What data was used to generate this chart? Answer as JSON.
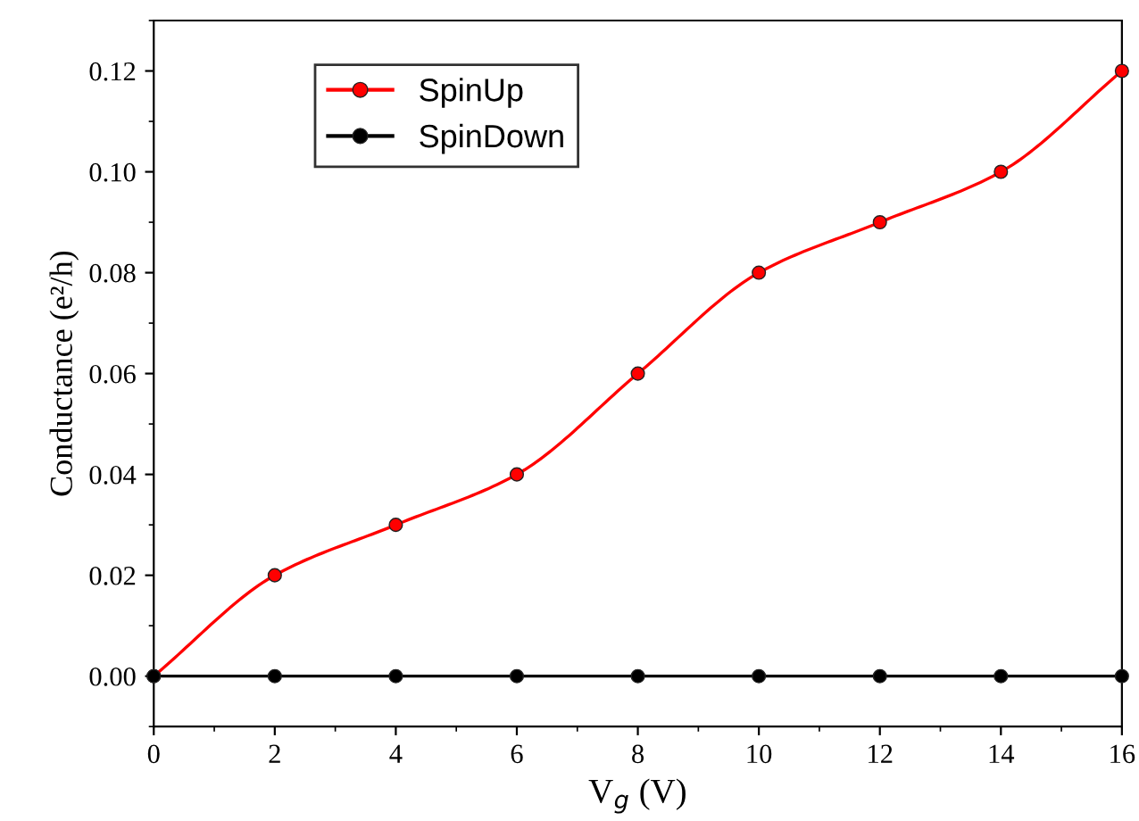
{
  "chart_data": {
    "type": "line",
    "xlabel": "V$_{g}$ (V)",
    "ylabel": "Conductance (e²/h)",
    "x": [
      0,
      2,
      4,
      6,
      8,
      10,
      12,
      14,
      16
    ],
    "series": [
      {
        "name": "SpinUp",
        "color": "#ff0000",
        "values": [
          0,
          0.02,
          0.03,
          0.04,
          0.06,
          0.08,
          0.09,
          0.1,
          0.12
        ]
      },
      {
        "name": "SpinDown",
        "color": "#000000",
        "values": [
          0,
          0,
          0,
          0,
          0,
          0,
          0,
          0,
          0
        ]
      }
    ],
    "xlim": [
      0,
      16
    ],
    "ylim": [
      -0.01,
      0.13
    ],
    "xticks": [
      0,
      2,
      4,
      6,
      8,
      10,
      12,
      14,
      16
    ],
    "yticks": [
      {
        "value": 0,
        "label": "0.00"
      },
      {
        "value": 0.02,
        "label": "0.02"
      },
      {
        "value": 0.04,
        "label": "0.04"
      },
      {
        "value": 0.06,
        "label": "0.06"
      },
      {
        "value": 0.08,
        "label": "0.08"
      },
      {
        "value": 0.1,
        "label": "0.10"
      },
      {
        "value": 0.12,
        "label": "0.12"
      }
    ],
    "marker": "circle",
    "line_style": "solid",
    "legend": "top left",
    "grid": false
  }
}
